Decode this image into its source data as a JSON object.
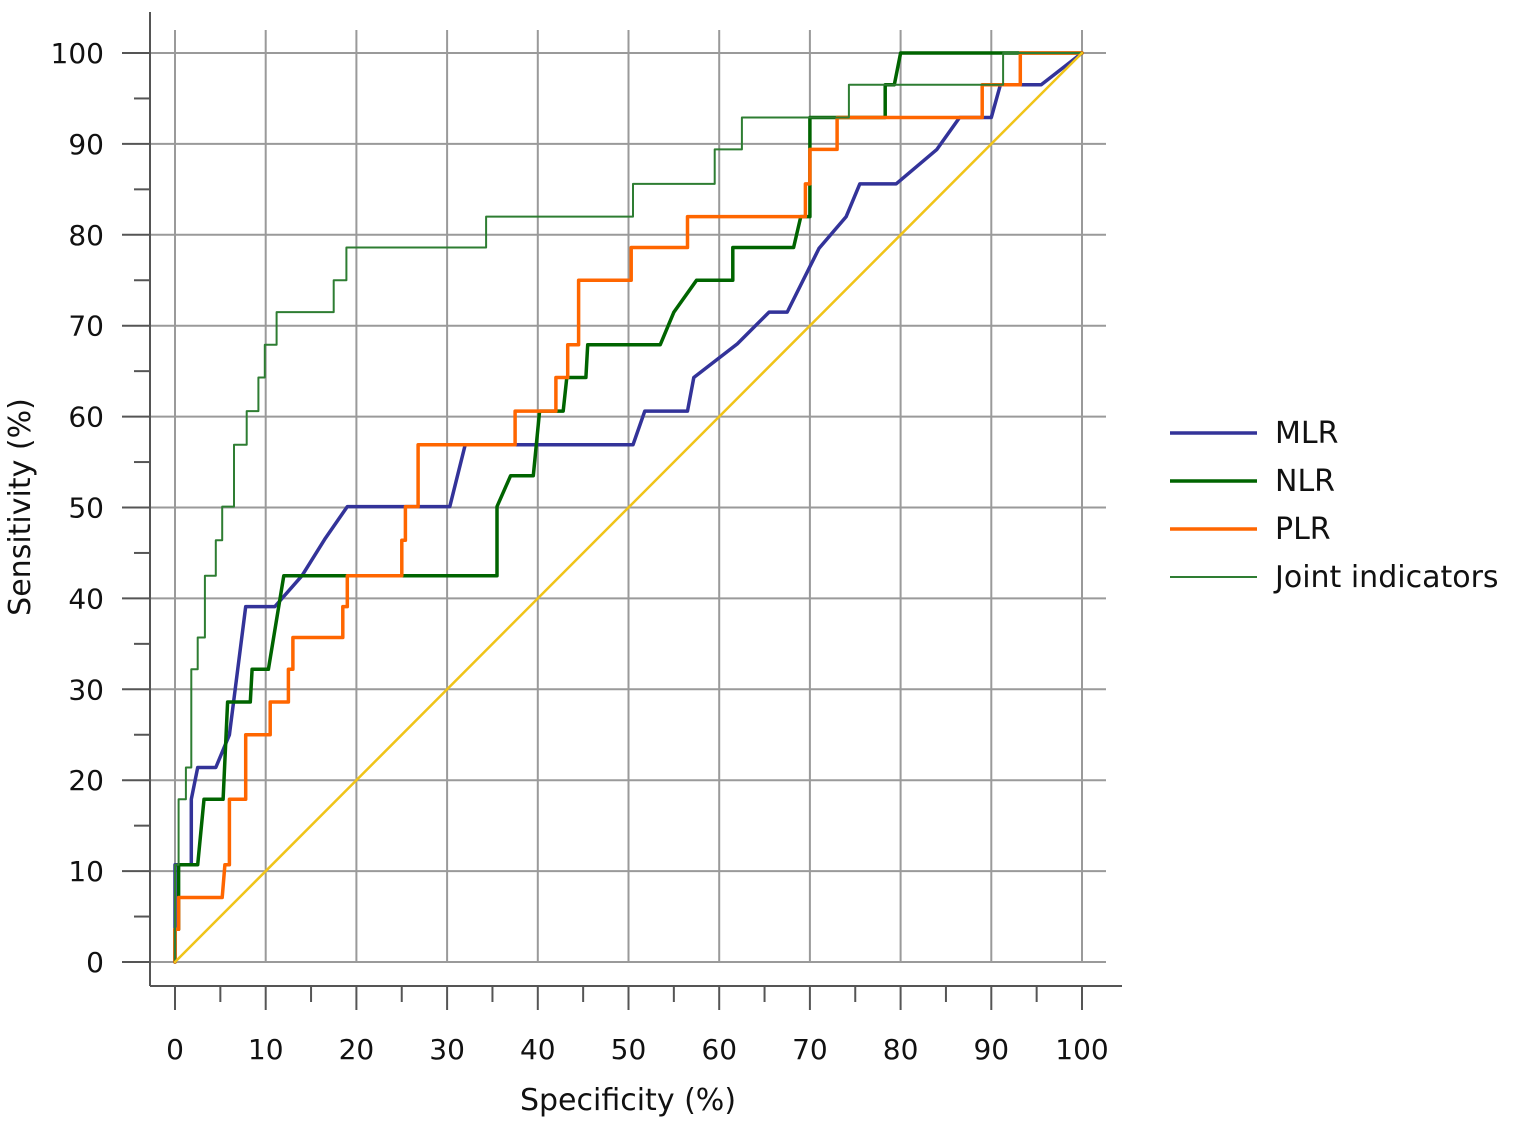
{
  "chart_data": {
    "type": "line",
    "title": "",
    "xlabel": "Specificity (%)",
    "ylabel": "Sensitivity (%)",
    "xlim": [
      0,
      100
    ],
    "ylim": [
      0,
      100
    ],
    "x_ticks": [
      "0",
      "10",
      "20",
      "30",
      "40",
      "50",
      "60",
      "70",
      "80",
      "90",
      "100"
    ],
    "y_ticks": [
      "0",
      "10",
      "20",
      "30",
      "40",
      "50",
      "60",
      "70",
      "80",
      "90",
      "100"
    ],
    "grid": true,
    "legend_position": "right",
    "series": [
      {
        "name": "MLR",
        "color": "#333399",
        "points": [
          [
            0,
            0
          ],
          [
            0,
            10.7
          ],
          [
            1.8,
            10.7
          ],
          [
            1.8,
            17.9
          ],
          [
            2.5,
            21.4
          ],
          [
            4.5,
            21.4
          ],
          [
            6,
            25
          ],
          [
            7.8,
            39.1
          ],
          [
            11,
            39.1
          ],
          [
            14,
            42.5
          ],
          [
            16.5,
            46.5
          ],
          [
            19,
            50.1
          ],
          [
            30.3,
            50.1
          ],
          [
            32,
            56.9
          ],
          [
            50.5,
            56.9
          ],
          [
            51.8,
            60.6
          ],
          [
            56.5,
            60.6
          ],
          [
            57.2,
            64.3
          ],
          [
            62,
            68
          ],
          [
            65.5,
            71.5
          ],
          [
            67.5,
            71.5
          ],
          [
            71,
            78.5
          ],
          [
            74,
            82
          ],
          [
            75.5,
            85.6
          ],
          [
            79.5,
            85.6
          ],
          [
            84,
            89.4
          ],
          [
            86.5,
            92.9
          ],
          [
            90,
            92.9
          ],
          [
            91,
            96.5
          ],
          [
            95.5,
            96.5
          ],
          [
            100,
            100
          ]
        ]
      },
      {
        "name": "NLR",
        "color": "#006400",
        "points": [
          [
            0,
            0
          ],
          [
            0,
            3.6
          ],
          [
            0.4,
            3.6
          ],
          [
            0.4,
            10.7
          ],
          [
            2.5,
            10.7
          ],
          [
            3.2,
            17.9
          ],
          [
            5.3,
            17.9
          ],
          [
            5.8,
            28.6
          ],
          [
            8.3,
            28.6
          ],
          [
            8.5,
            32.2
          ],
          [
            10.3,
            32.2
          ],
          [
            12,
            42.5
          ],
          [
            35.5,
            42.5
          ],
          [
            35.5,
            50.1
          ],
          [
            37,
            53.5
          ],
          [
            39.5,
            53.5
          ],
          [
            40.2,
            60.6
          ],
          [
            42.8,
            60.6
          ],
          [
            43.2,
            64.3
          ],
          [
            45.3,
            64.3
          ],
          [
            45.5,
            67.9
          ],
          [
            53.5,
            67.9
          ],
          [
            55,
            71.5
          ],
          [
            57.5,
            75
          ],
          [
            61.5,
            75
          ],
          [
            61.5,
            78.6
          ],
          [
            68.2,
            78.6
          ],
          [
            69,
            82
          ],
          [
            70,
            82
          ],
          [
            70,
            92.9
          ],
          [
            78.3,
            92.9
          ],
          [
            78.3,
            96.5
          ],
          [
            79.3,
            96.5
          ],
          [
            80,
            100
          ],
          [
            100,
            100
          ]
        ]
      },
      {
        "name": "PLR",
        "color": "#ff6600",
        "points": [
          [
            0,
            0
          ],
          [
            0,
            3.6
          ],
          [
            0.4,
            3.6
          ],
          [
            0.4,
            7.1
          ],
          [
            5.2,
            7.1
          ],
          [
            5.5,
            10.7
          ],
          [
            6,
            10.7
          ],
          [
            6,
            17.9
          ],
          [
            7.8,
            17.9
          ],
          [
            7.8,
            25
          ],
          [
            10.5,
            25
          ],
          [
            10.5,
            28.6
          ],
          [
            12.5,
            28.6
          ],
          [
            12.5,
            32.2
          ],
          [
            13,
            32.2
          ],
          [
            13,
            35.7
          ],
          [
            18.5,
            35.7
          ],
          [
            18.5,
            39.1
          ],
          [
            19,
            39.1
          ],
          [
            19,
            42.5
          ],
          [
            25,
            42.5
          ],
          [
            25,
            46.4
          ],
          [
            25.4,
            46.4
          ],
          [
            25.4,
            50.1
          ],
          [
            26.8,
            50.1
          ],
          [
            26.8,
            56.9
          ],
          [
            37.5,
            56.9
          ],
          [
            37.5,
            60.6
          ],
          [
            42,
            60.6
          ],
          [
            42,
            64.3
          ],
          [
            43.3,
            64.3
          ],
          [
            43.3,
            67.9
          ],
          [
            44.5,
            67.9
          ],
          [
            44.5,
            75
          ],
          [
            50.3,
            75
          ],
          [
            50.3,
            78.6
          ],
          [
            56.5,
            78.6
          ],
          [
            56.5,
            82
          ],
          [
            69.5,
            82
          ],
          [
            69.5,
            85.6
          ],
          [
            70,
            85.6
          ],
          [
            70,
            89.4
          ],
          [
            73,
            89.4
          ],
          [
            73,
            92.9
          ],
          [
            89,
            92.9
          ],
          [
            89,
            96.5
          ],
          [
            93.2,
            96.5
          ],
          [
            93.2,
            100
          ],
          [
            100,
            100
          ]
        ]
      },
      {
        "name": "Joint indicators",
        "color": "#2e7d32",
        "points": [
          [
            0,
            0
          ],
          [
            0,
            10.7
          ],
          [
            0.4,
            10.7
          ],
          [
            0.4,
            17.9
          ],
          [
            1.2,
            17.9
          ],
          [
            1.2,
            21.4
          ],
          [
            1.8,
            21.4
          ],
          [
            1.8,
            32.2
          ],
          [
            2.5,
            32.2
          ],
          [
            2.5,
            35.7
          ],
          [
            3.3,
            35.7
          ],
          [
            3.3,
            42.5
          ],
          [
            4.5,
            42.5
          ],
          [
            4.5,
            46.4
          ],
          [
            5.2,
            46.4
          ],
          [
            5.2,
            50.1
          ],
          [
            6.5,
            50.1
          ],
          [
            6.5,
            56.9
          ],
          [
            7.9,
            56.9
          ],
          [
            7.9,
            60.6
          ],
          [
            9.2,
            60.6
          ],
          [
            9.2,
            64.3
          ],
          [
            9.9,
            64.3
          ],
          [
            9.9,
            67.9
          ],
          [
            11.2,
            67.9
          ],
          [
            11.2,
            71.5
          ],
          [
            17.5,
            71.5
          ],
          [
            17.5,
            75
          ],
          [
            18.9,
            75
          ],
          [
            18.9,
            78.6
          ],
          [
            34.3,
            78.6
          ],
          [
            34.3,
            82
          ],
          [
            50.5,
            82
          ],
          [
            50.5,
            85.6
          ],
          [
            59.5,
            85.6
          ],
          [
            59.5,
            89.4
          ],
          [
            62.5,
            89.4
          ],
          [
            62.5,
            92.9
          ],
          [
            74.3,
            92.9
          ],
          [
            74.3,
            96.5
          ],
          [
            91.3,
            96.5
          ],
          [
            91.3,
            100
          ],
          [
            100,
            100
          ]
        ]
      },
      {
        "name": "",
        "color": "#f0c419",
        "points": [
          [
            0,
            0
          ],
          [
            100,
            100
          ]
        ]
      }
    ]
  }
}
